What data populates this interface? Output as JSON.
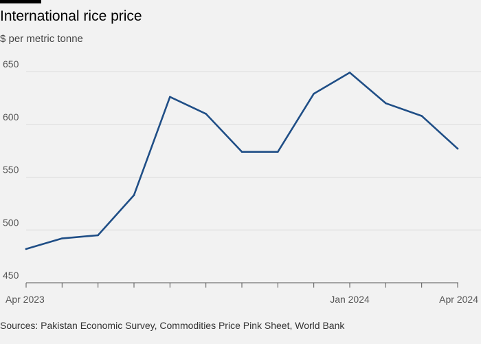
{
  "header": {
    "title": "International rice price",
    "subtitle": "$ per metric tonne"
  },
  "footer": {
    "source": "Sources: Pakistan Economic Survey, Commodities Price Pink Sheet, World Bank"
  },
  "chart_data": {
    "type": "line",
    "title": "International rice price",
    "ylabel": "$ per metric tonne",
    "xlabel": "",
    "x": [
      "2023-04",
      "2023-05",
      "2023-06",
      "2023-07",
      "2023-08",
      "2023-09",
      "2023-10",
      "2023-11",
      "2023-12",
      "2024-01",
      "2024-02",
      "2024-03",
      "2024-04"
    ],
    "series": [
      {
        "values": [
          482,
          492,
          495,
          533,
          626,
          610,
          574,
          574,
          629,
          649,
          620,
          608,
          577
        ],
        "color": "#1f4e86"
      }
    ],
    "ylim": [
      450,
      660
    ],
    "yticks": [
      650,
      600,
      550,
      500,
      450
    ],
    "xtick_labels": [
      {
        "x": "2023-04",
        "label": "Apr 2023"
      },
      {
        "x": "2024-01",
        "label": "Jan 2024"
      },
      {
        "x": "2024-04",
        "label": "Apr 2024"
      }
    ],
    "grid": true,
    "legend": "none"
  }
}
